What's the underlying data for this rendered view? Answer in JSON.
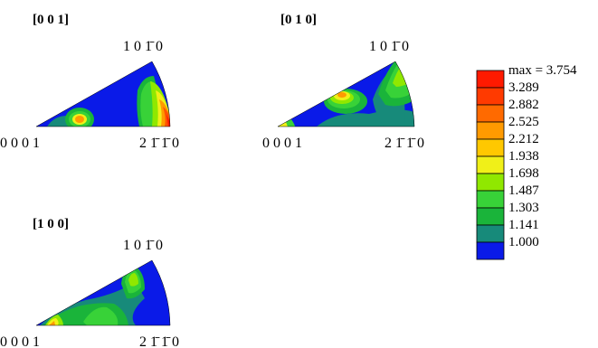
{
  "palette": {
    "blue": "#0a1ae8",
    "green_mid": "#14b43a",
    "green_light": "#38d238",
    "lime": "#90e800",
    "yellow": "#f0f018",
    "orange": "#ff9a00",
    "orange_red": "#ff5400",
    "red": "#ff1a00",
    "teal": "#178a7a"
  },
  "figures": [
    {
      "title": "[0 0 1]",
      "corner_labels": {
        "top": "1 0 1̄ 0",
        "left": "0 0 0 1",
        "right": "2 1̄ 1̄ 0"
      }
    },
    {
      "title": "[0 1 0]",
      "corner_labels": {
        "top": "1 0 1̄ 0",
        "left": "0 0 0 1",
        "right": "2 1̄ 1̄ 0"
      }
    },
    {
      "title": "[1 0 0]",
      "corner_labels": {
        "top": "1 0 1̄ 0",
        "left": "0 0 0 1",
        "right": "2 1̄ 1̄ 0"
      }
    }
  ],
  "legend": {
    "levels": [
      {
        "label": "max = 3.754",
        "color": "#ff1a00"
      },
      {
        "label": "3.289",
        "color": "#ff3a00"
      },
      {
        "label": "2.882",
        "color": "#ff6a00"
      },
      {
        "label": "2.525",
        "color": "#ff9a00"
      },
      {
        "label": "2.212",
        "color": "#ffc800"
      },
      {
        "label": "1.938",
        "color": "#f0f018"
      },
      {
        "label": "1.698",
        "color": "#90e800"
      },
      {
        "label": "1.487",
        "color": "#38d238"
      },
      {
        "label": "1.303",
        "color": "#1ab43a"
      },
      {
        "label": "1.141",
        "color": "#178a7a"
      },
      {
        "label": "1.000",
        "color": "#0a1ae8"
      }
    ]
  }
}
